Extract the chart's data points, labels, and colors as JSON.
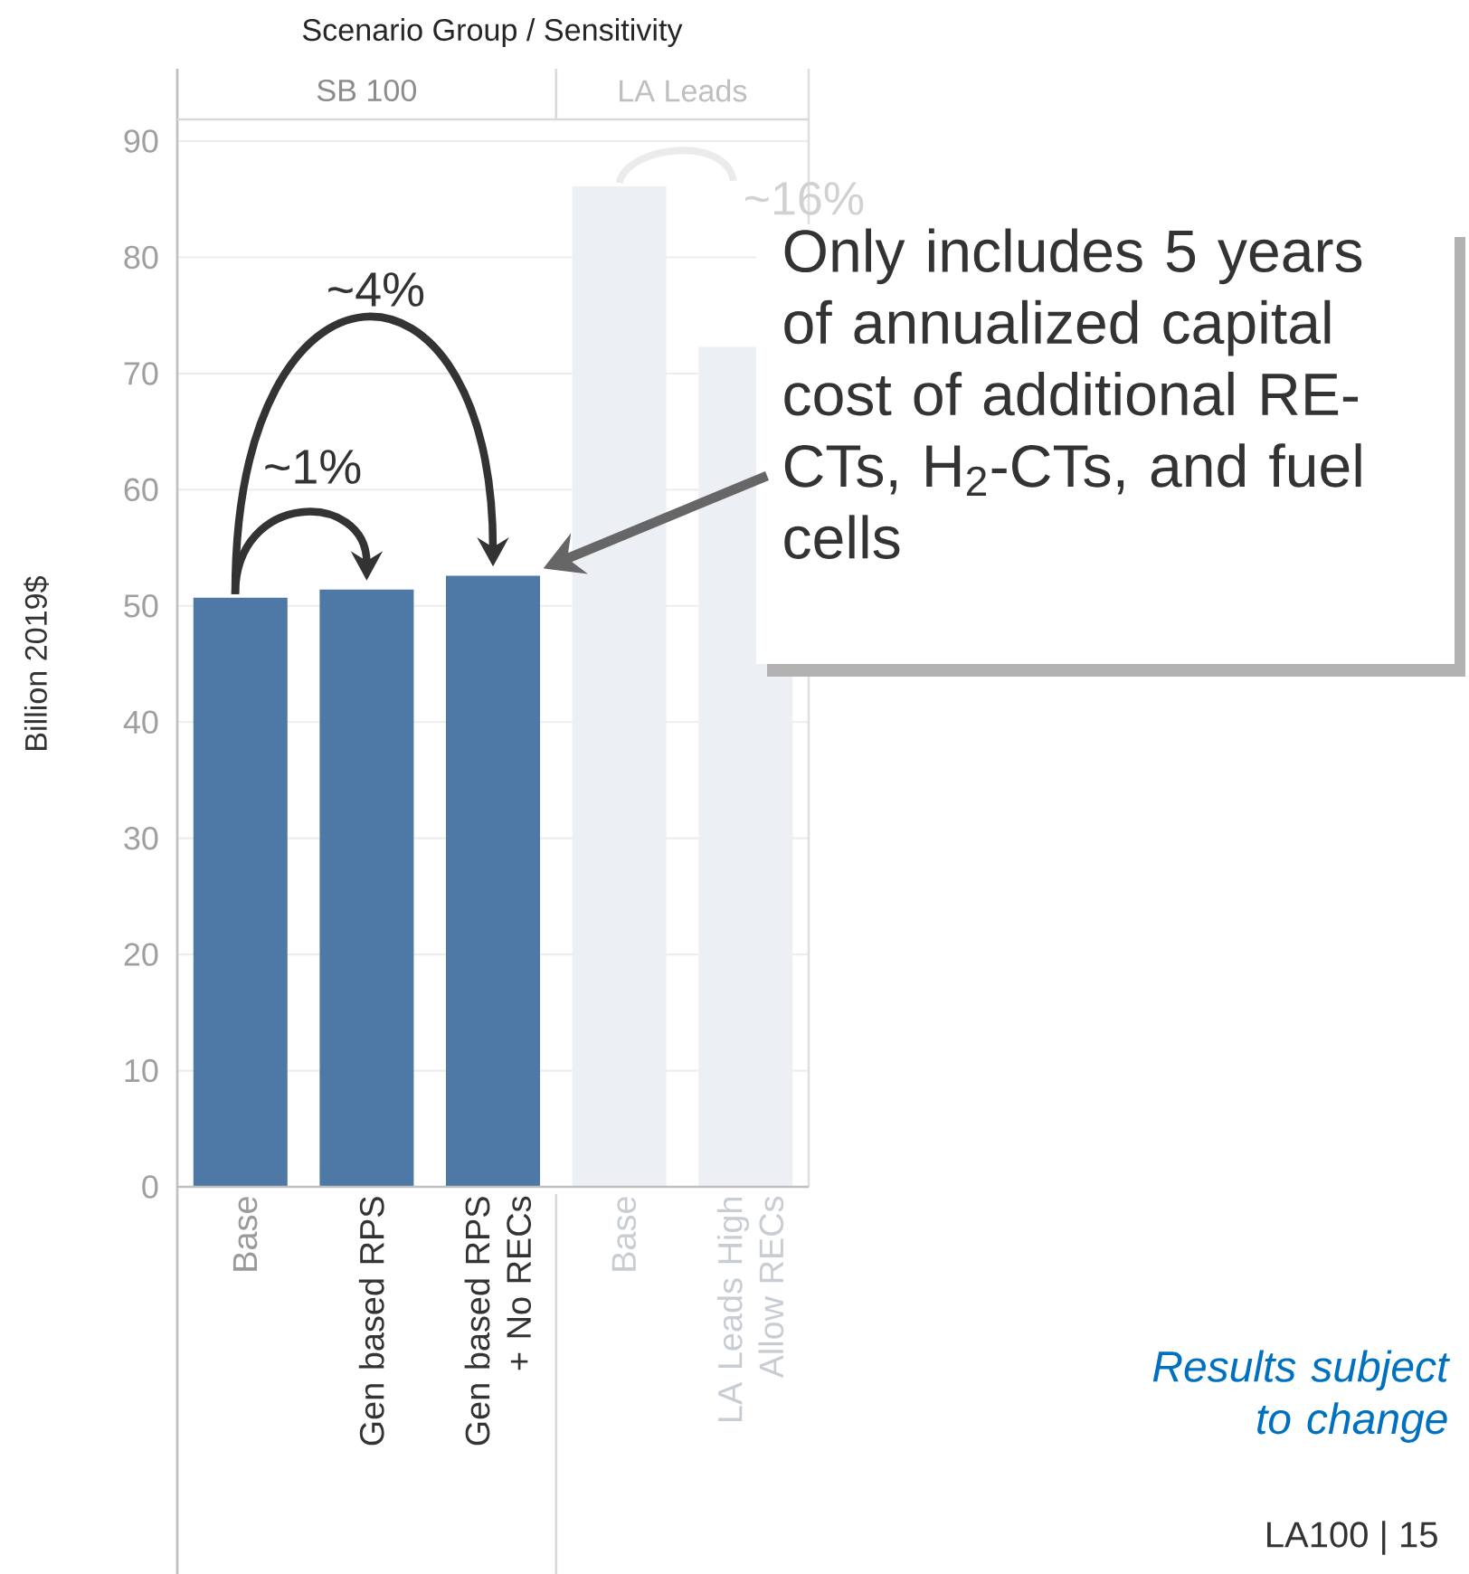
{
  "chart_data": {
    "type": "bar",
    "title": "Scenario Group / Sensitivity",
    "ylabel": "Billion 2019$",
    "categories": [
      "Base",
      "Gen based RPS",
      "Gen based RPS + No RECs",
      "Base",
      "LA Leads High Allow RECs"
    ],
    "values": [
      50.7,
      51.4,
      52.6,
      86.1,
      72.3
    ],
    "colors": [
      "#4e79a7",
      "#4e79a7",
      "#4e79a7",
      "#eceff4",
      "#eceff4"
    ],
    "ylim": [
      0,
      90
    ],
    "yticks": [
      0,
      10,
      20,
      30,
      40,
      50,
      60,
      70,
      80,
      90
    ],
    "grid": "y",
    "annotations": [
      "SB 100",
      "LA Leads",
      "~1%",
      "~4%",
      {
        "text": "~16%",
        "x": "LA Leads High Allow RECs",
        "y": 72.3
      },
      "Only includes 5 years of annualized capital cost of additional RE-CTs, H$_{2}$-CTs, and fuel cells",
      "*Results subject to change*",
      "LA100 | 15"
    ]
  }
}
